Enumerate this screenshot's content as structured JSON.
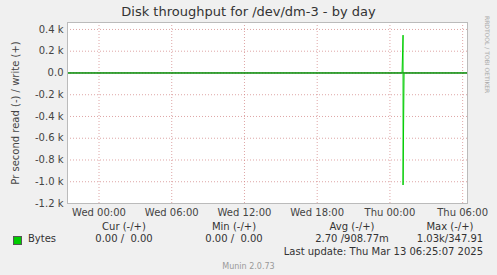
{
  "chart_data": {
    "type": "line",
    "title": "Disk throughput for /dev/dm-3 - by day",
    "y_label": "Pr second read (-) / write (+)",
    "x": [
      -2.6,
      25.0,
      25.083,
      25.083,
      25.167,
      30.4
    ],
    "series": [
      {
        "name": "Bytes",
        "color": "#00cc00",
        "values": [
          0,
          0,
          347.91,
          -1030,
          0,
          0
        ],
        "stats": [
          "0.00 /  0.00",
          "0.00 /  0.00",
          "2.70 /908.77m",
          "1.03k/347.91"
        ]
      }
    ],
    "stats_columns": [
      "Cur (-/+)",
      "Min (-/+)",
      "Avg (-/+)",
      "Max (-/+)"
    ],
    "xlim": [
      -2.6,
      30.4
    ],
    "xticks": [
      {
        "value": 0,
        "label": "Wed 00:00"
      },
      {
        "value": 6,
        "label": "Wed 06:00"
      },
      {
        "value": 12,
        "label": "Wed 12:00"
      },
      {
        "value": 18,
        "label": "Wed 18:00"
      },
      {
        "value": 24,
        "label": "Thu 00:00"
      },
      {
        "value": 30,
        "label": "Thu 06:00"
      }
    ],
    "ylim": [
      -1200,
      464
    ],
    "yticks": [
      {
        "value": 400,
        "label": "0.4 k"
      },
      {
        "value": 200,
        "label": "0.2 k"
      },
      {
        "value": 0,
        "label": "0.0"
      },
      {
        "value": -200,
        "label": "-0.2 k"
      },
      {
        "value": -400,
        "label": "-0.4 k"
      },
      {
        "value": -600,
        "label": "-0.6 k"
      },
      {
        "value": -800,
        "label": "-0.8 k"
      },
      {
        "value": -1000,
        "label": "-1.0 k"
      },
      {
        "value": -1200,
        "label": "-1.2 k"
      }
    ],
    "grid": true,
    "last_update": "Last update: Thu Mar 13 06:25:07 2025",
    "footer": "Munin 2.0.73",
    "watermark": "RRDTOOL / TOBI OETIKER"
  }
}
